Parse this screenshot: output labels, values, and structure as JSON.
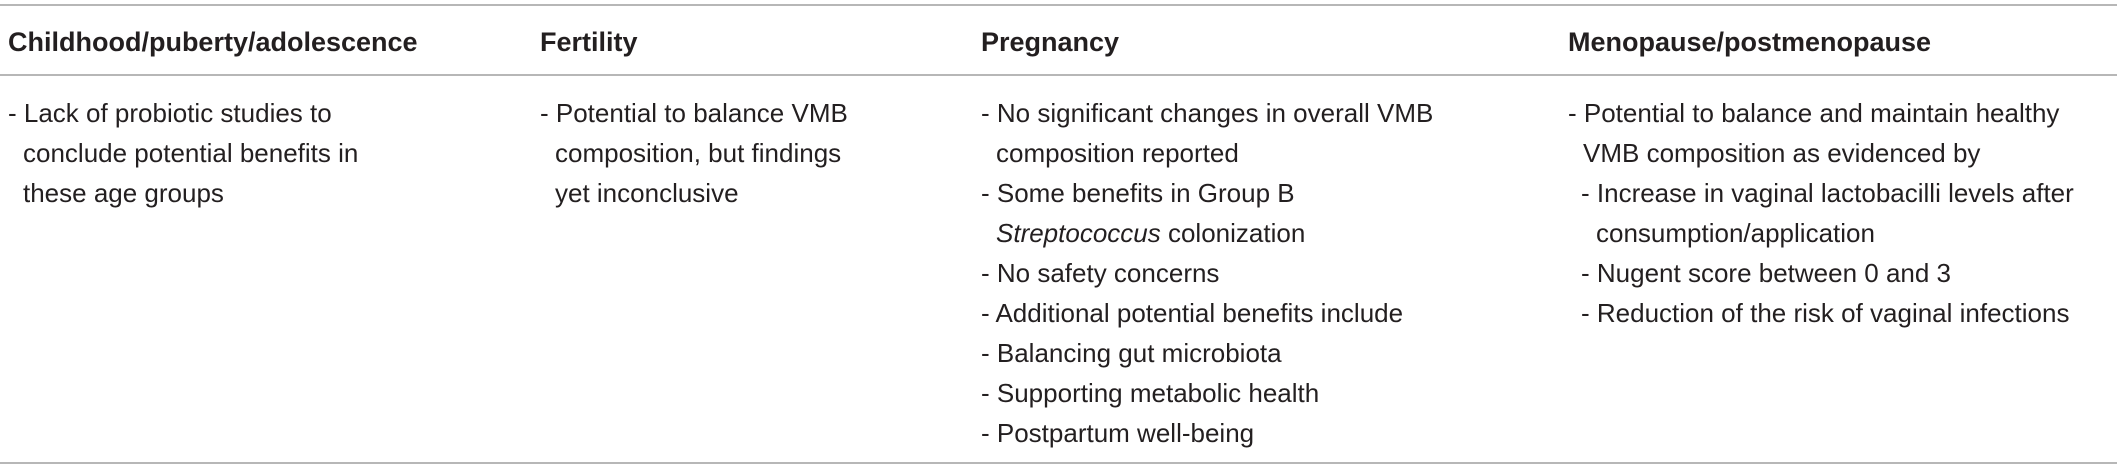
{
  "table": {
    "headers": [
      "Childhood/puberty/adolescence",
      "Fertility",
      "Pregnancy",
      "Menopause/postmenopause"
    ],
    "childhood": {
      "item1_line1": "- Lack of probiotic studies to",
      "item1_line2": "conclude potential benefits in",
      "item1_line3": "these age groups"
    },
    "fertility": {
      "item1_line1": "- Potential to balance VMB",
      "item1_line2": "composition, but findings",
      "item1_line3": "yet inconclusive"
    },
    "pregnancy": {
      "item1_line1": "- No significant changes in overall VMB",
      "item1_line2": "composition reported",
      "item2_line1": "- Some benefits in Group B",
      "item2_line2_italic": "Streptococcus",
      "item2_line2_rest": " colonization",
      "item3": "- No safety concerns",
      "item4": "- Additional potential benefits include",
      "item5": "- Balancing gut microbiota",
      "item6": "- Supporting metabolic health",
      "item7": "- Postpartum well-being"
    },
    "menopause": {
      "item1_line1": "- Potential to balance and maintain healthy",
      "item1_line2": "VMB composition as evidenced by",
      "sub1_line1": "- Increase in vaginal lactobacilli levels after",
      "sub1_line2": "consumption/application",
      "sub2": "- Nugent score between 0 and 3",
      "sub3": "- Reduction of the risk of vaginal infections"
    }
  }
}
